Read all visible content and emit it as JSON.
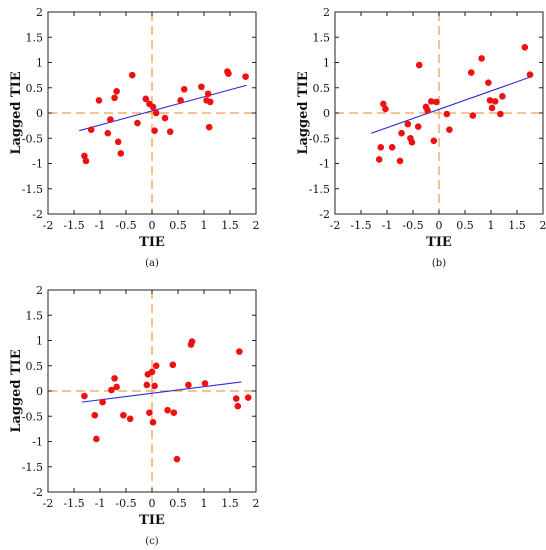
{
  "colors": {
    "points": "#ee1111",
    "fit_line": "#2b2bdd",
    "zero_lines": "#f0a050",
    "frame": "#222222",
    "background": "#ffffff"
  },
  "chart_data": [
    {
      "type": "scatter",
      "panel_label": "(a)",
      "xlabel": "TIE",
      "ylabel": "Lagged TIE",
      "xlim": [
        -2,
        2
      ],
      "ylim": [
        -2,
        2
      ],
      "xticks": [
        "-2",
        "-1.5",
        "-1",
        "-0.5",
        "0",
        "0.5",
        "1",
        "1.5",
        "2"
      ],
      "yticks": [
        "-2",
        "-1.5",
        "-1",
        "-0.5",
        "0",
        "0.5",
        "1",
        "1.5",
        "2"
      ],
      "grid": false,
      "reference_lines": {
        "x": 0,
        "y": 0,
        "style": "dashed"
      },
      "points": [
        [
          -1.3,
          -0.85
        ],
        [
          -1.27,
          -0.95
        ],
        [
          -1.17,
          -0.33
        ],
        [
          -1.02,
          0.25
        ],
        [
          -0.85,
          -0.4
        ],
        [
          -0.8,
          -0.13
        ],
        [
          -0.72,
          0.3
        ],
        [
          -0.68,
          0.43
        ],
        [
          -0.65,
          -0.57
        ],
        [
          -0.6,
          -0.8
        ],
        [
          -0.38,
          0.75
        ],
        [
          -0.28,
          -0.2
        ],
        [
          -0.12,
          0.28
        ],
        [
          -0.05,
          0.18
        ],
        [
          0.02,
          0.12
        ],
        [
          0.05,
          -0.35
        ],
        [
          0.08,
          0.0
        ],
        [
          0.25,
          -0.1
        ],
        [
          0.35,
          -0.37
        ],
        [
          0.55,
          0.25
        ],
        [
          0.62,
          0.47
        ],
        [
          0.95,
          0.52
        ],
        [
          1.05,
          0.25
        ],
        [
          1.08,
          0.38
        ],
        [
          1.1,
          -0.28
        ],
        [
          1.12,
          0.22
        ],
        [
          1.45,
          0.82
        ],
        [
          1.47,
          0.78
        ],
        [
          1.8,
          0.72
        ]
      ],
      "fit_line": [
        [
          -1.4,
          -0.35
        ],
        [
          1.82,
          0.55
        ]
      ]
    },
    {
      "type": "scatter",
      "panel_label": "(b)",
      "xlabel": "TIE",
      "ylabel": "Lagged TIE",
      "xlim": [
        -2,
        2
      ],
      "ylim": [
        -2,
        2
      ],
      "xticks": [
        "-2",
        "-1.5",
        "-1",
        "-0.5",
        "0",
        "0.5",
        "1",
        "1.5",
        "2"
      ],
      "yticks": [
        "-2",
        "-1.5",
        "-1",
        "-0.5",
        "0",
        "0.5",
        "1",
        "1.5",
        "2"
      ],
      "grid": false,
      "reference_lines": {
        "x": 0,
        "y": 0,
        "style": "dashed"
      },
      "points": [
        [
          -1.15,
          -0.92
        ],
        [
          -1.12,
          -0.68
        ],
        [
          -1.07,
          0.18
        ],
        [
          -1.03,
          0.08
        ],
        [
          -0.9,
          -0.68
        ],
        [
          -0.75,
          -0.95
        ],
        [
          -0.72,
          -0.4
        ],
        [
          -0.6,
          -0.22
        ],
        [
          -0.55,
          -0.5
        ],
        [
          -0.52,
          -0.58
        ],
        [
          -0.4,
          -0.27
        ],
        [
          -0.38,
          0.95
        ],
        [
          -0.25,
          0.12
        ],
        [
          -0.22,
          0.05
        ],
        [
          -0.15,
          0.23
        ],
        [
          -0.1,
          -0.55
        ],
        [
          -0.05,
          0.22
        ],
        [
          0.15,
          -0.02
        ],
        [
          0.2,
          -0.33
        ],
        [
          0.62,
          0.8
        ],
        [
          0.65,
          -0.05
        ],
        [
          0.82,
          1.08
        ],
        [
          0.95,
          0.6
        ],
        [
          0.98,
          0.25
        ],
        [
          1.02,
          0.1
        ],
        [
          1.08,
          0.23
        ],
        [
          1.18,
          -0.02
        ],
        [
          1.22,
          0.33
        ],
        [
          1.65,
          1.3
        ],
        [
          1.75,
          0.76
        ]
      ],
      "fit_line": [
        [
          -1.3,
          -0.4
        ],
        [
          1.78,
          0.72
        ]
      ]
    },
    {
      "type": "scatter",
      "panel_label": "(c)",
      "xlabel": "TIE",
      "ylabel": "Lagged TIE",
      "xlim": [
        -2,
        2
      ],
      "ylim": [
        -2,
        2
      ],
      "xticks": [
        "-2",
        "-1.5",
        "-1",
        "-0.5",
        "0",
        "0.5",
        "1",
        "1.5",
        "2"
      ],
      "yticks": [
        "-2",
        "-1.5",
        "-1",
        "-0.5",
        "0",
        "0.5",
        "1",
        "1.5",
        "2"
      ],
      "grid": false,
      "reference_lines": {
        "x": 0,
        "y": 0,
        "style": "dashed"
      },
      "points": [
        [
          -1.3,
          -0.1
        ],
        [
          -1.1,
          -0.48
        ],
        [
          -1.07,
          -0.95
        ],
        [
          -0.95,
          -0.22
        ],
        [
          -0.78,
          0.02
        ],
        [
          -0.72,
          0.25
        ],
        [
          -0.68,
          0.08
        ],
        [
          -0.55,
          -0.48
        ],
        [
          -0.42,
          -0.55
        ],
        [
          -0.1,
          0.12
        ],
        [
          -0.08,
          0.33
        ],
        [
          -0.05,
          -0.43
        ],
        [
          0.0,
          0.38
        ],
        [
          0.02,
          -0.62
        ],
        [
          0.05,
          0.1
        ],
        [
          0.08,
          0.5
        ],
        [
          0.3,
          -0.38
        ],
        [
          0.4,
          0.52
        ],
        [
          0.42,
          -0.43
        ],
        [
          0.48,
          -1.35
        ],
        [
          0.7,
          0.12
        ],
        [
          0.75,
          0.92
        ],
        [
          0.77,
          0.98
        ],
        [
          1.02,
          0.15
        ],
        [
          1.62,
          -0.15
        ],
        [
          1.65,
          -0.3
        ],
        [
          1.68,
          0.78
        ],
        [
          1.85,
          -0.13
        ]
      ],
      "fit_line": [
        [
          -1.35,
          -0.22
        ],
        [
          1.72,
          0.18
        ]
      ]
    }
  ]
}
